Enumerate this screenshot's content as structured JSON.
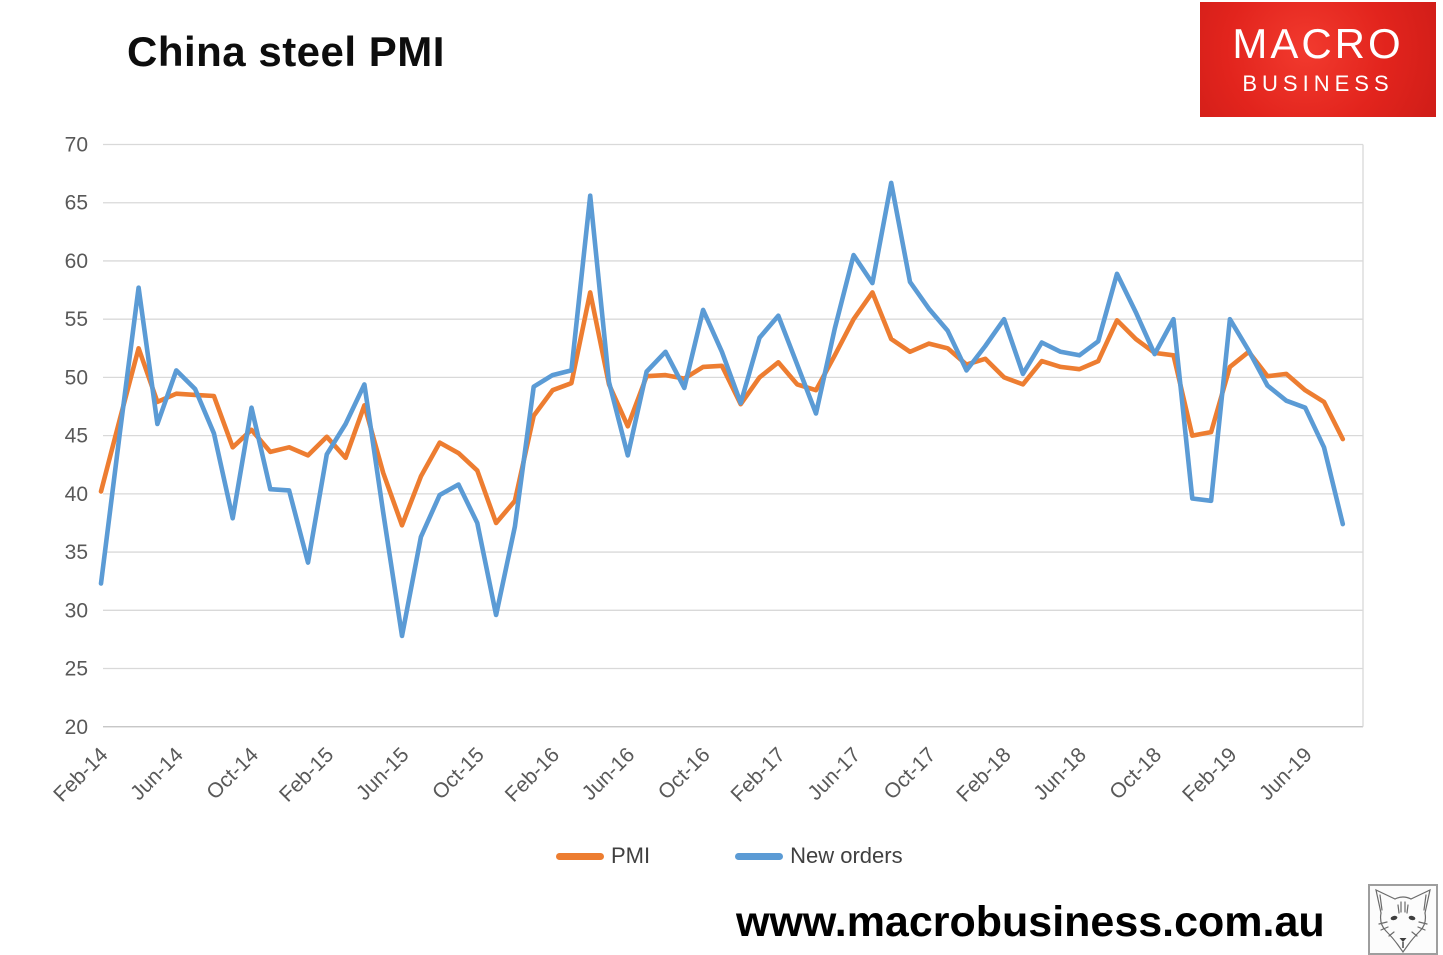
{
  "title": "China steel PMI",
  "logo": {
    "line1": "MACRO",
    "line2": "BUSINESS"
  },
  "footer": {
    "url": "www.macrobusiness.com.au"
  },
  "colors": {
    "pmi_orange": "#ED7D31",
    "new_orders_blue": "#5B9BD5",
    "grid": "#D9D9D9",
    "axis_line": "#BFBFBF",
    "axis_text": "#595959",
    "logo_red": "#E2241D",
    "title_text": "#0D0D0D"
  },
  "chart_data": {
    "type": "line",
    "title": "China steel PMI",
    "xlabel": "",
    "ylabel": "",
    "ylim": [
      20,
      70
    ],
    "ytick_step": 5,
    "y_ticks": [
      20,
      25,
      30,
      35,
      40,
      45,
      50,
      55,
      60,
      65,
      70
    ],
    "grid": true,
    "legend_position": "bottom",
    "x_tick_every": 4,
    "x_tick_labels": [
      "Feb-14",
      "Jun-14",
      "Oct-14",
      "Feb-15",
      "Jun-15",
      "Oct-15",
      "Feb-16",
      "Jun-16",
      "Oct-16",
      "Feb-17",
      "Jun-17",
      "Oct-17",
      "Feb-18",
      "Jun-18",
      "Oct-18",
      "Feb-19",
      "Jun-19"
    ],
    "categories": [
      "Feb-14",
      "Mar-14",
      "Apr-14",
      "May-14",
      "Jun-14",
      "Jul-14",
      "Aug-14",
      "Sep-14",
      "Oct-14",
      "Nov-14",
      "Dec-14",
      "Jan-15",
      "Feb-15",
      "Mar-15",
      "Apr-15",
      "May-15",
      "Jun-15",
      "Jul-15",
      "Aug-15",
      "Sep-15",
      "Oct-15",
      "Nov-15",
      "Dec-15",
      "Jan-16",
      "Feb-16",
      "Mar-16",
      "Apr-16",
      "May-16",
      "Jun-16",
      "Jul-16",
      "Aug-16",
      "Sep-16",
      "Oct-16",
      "Nov-16",
      "Dec-16",
      "Jan-17",
      "Feb-17",
      "Mar-17",
      "Apr-17",
      "May-17",
      "Jun-17",
      "Jul-17",
      "Aug-17",
      "Sep-17",
      "Oct-17",
      "Nov-17",
      "Dec-17",
      "Jan-18",
      "Feb-18",
      "Mar-18",
      "Apr-18",
      "May-18",
      "Jun-18",
      "Jul-18",
      "Aug-18",
      "Sep-18",
      "Oct-18",
      "Nov-18",
      "Dec-18",
      "Jan-19",
      "Feb-19",
      "Mar-19",
      "Apr-19",
      "May-19",
      "Jun-19",
      "Jul-19",
      "Aug-19"
    ],
    "series": [
      {
        "name": "PMI",
        "color": "#ED7D31",
        "values": [
          40.2,
          46.4,
          52.5,
          47.9,
          48.6,
          48.5,
          48.4,
          44.0,
          45.5,
          43.6,
          44.0,
          43.3,
          44.9,
          43.1,
          47.6,
          41.8,
          37.3,
          41.5,
          44.4,
          43.5,
          42.0,
          37.5,
          39.4,
          46.7,
          48.9,
          49.5,
          57.3,
          49.4,
          45.8,
          50.1,
          50.2,
          49.9,
          50.9,
          51.0,
          47.7,
          50.0,
          51.3,
          49.4,
          48.9,
          51.9,
          55.0,
          57.3,
          53.3,
          52.2,
          52.9,
          52.5,
          51.1,
          51.6,
          50.0,
          49.4,
          51.4,
          50.9,
          50.7,
          51.4,
          54.9,
          53.3,
          52.1,
          51.9,
          45.0,
          45.3,
          50.9,
          52.2,
          50.1,
          50.3,
          48.9,
          47.9,
          44.7
        ]
      },
      {
        "name": "New orders",
        "color": "#5B9BD5",
        "values": [
          32.3,
          45.2,
          57.7,
          46.0,
          50.6,
          49.0,
          45.2,
          37.9,
          47.4,
          40.4,
          40.3,
          34.1,
          43.4,
          46.0,
          49.4,
          38.4,
          27.8,
          36.3,
          39.9,
          40.8,
          37.5,
          29.6,
          37.2,
          49.2,
          50.2,
          50.6,
          65.6,
          49.6,
          43.3,
          50.5,
          52.2,
          49.1,
          55.8,
          52.2,
          47.8,
          53.4,
          55.3,
          51.1,
          46.9,
          54.2,
          60.5,
          58.1,
          66.7,
          58.2,
          55.9,
          54.0,
          50.6,
          52.7,
          55.0,
          50.3,
          53.0,
          52.2,
          51.9,
          53.1,
          58.9,
          55.6,
          52.0,
          55.0,
          39.6,
          39.4,
          55.0,
          52.3,
          49.3,
          48.0,
          47.4,
          44.0,
          37.4
        ]
      }
    ]
  }
}
